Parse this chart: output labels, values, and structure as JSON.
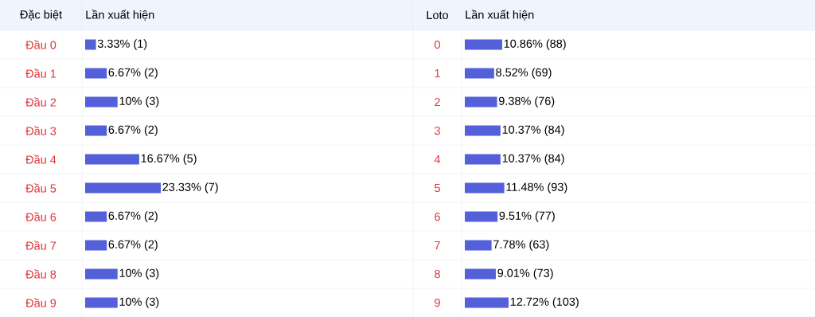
{
  "chart_data": [
    {
      "type": "bar",
      "orientation": "horizontal",
      "ylabel": "Đặc biệt",
      "title": "Lần xuất hiện",
      "tick_labels": "y",
      "color": "#5360d9",
      "categories": [
        "Đầu 0",
        "Đầu 1",
        "Đầu 2",
        "Đầu 3",
        "Đầu 4",
        "Đầu 5",
        "Đầu 6",
        "Đầu 7",
        "Đầu 8",
        "Đầu 9"
      ],
      "values": [
        3.33,
        6.67,
        10,
        6.67,
        16.67,
        23.33,
        6.67,
        6.67,
        10,
        10
      ],
      "value_labels": [
        "3.33% (1)",
        "6.67% (2)",
        "10% (3)",
        "6.67% (2)",
        "16.67% (5)",
        "23.33% (7)",
        "6.67% (2)",
        "6.67% (2)",
        "10% (3)",
        "10% (3)"
      ]
    },
    {
      "type": "bar",
      "orientation": "horizontal",
      "ylabel": "Loto",
      "title": "Lần xuất hiện",
      "tick_labels": "y",
      "color": "#5360d9",
      "categories": [
        "0",
        "1",
        "2",
        "3",
        "4",
        "5",
        "6",
        "7",
        "8",
        "9"
      ],
      "values": [
        10.86,
        8.52,
        9.38,
        10.37,
        10.37,
        11.48,
        9.51,
        7.78,
        9.01,
        12.72
      ],
      "value_labels": [
        "10.86% (88)",
        "8.52% (69)",
        "9.38% (76)",
        "10.37% (84)",
        "10.37% (84)",
        "11.48% (93)",
        "9.51% (77)",
        "7.78% (63)",
        "9.01% (73)",
        "12.72% (103)"
      ]
    }
  ]
}
